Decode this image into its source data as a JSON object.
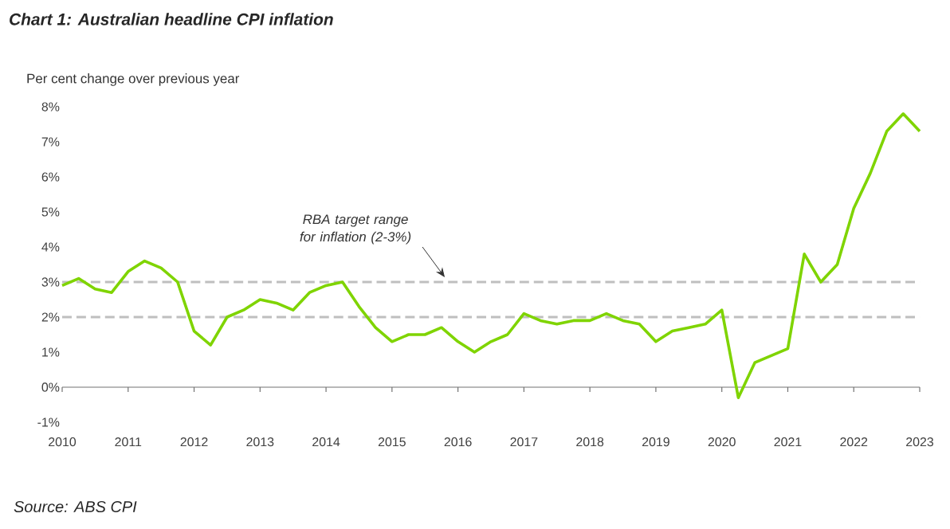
{
  "chart_data": {
    "type": "line",
    "title": "Chart 1: Australian headline CPI inflation",
    "ylabel": "Per cent change over previous year",
    "x": [
      2010,
      2010.25,
      2010.5,
      2010.75,
      2011,
      2011.25,
      2011.5,
      2011.75,
      2012,
      2012.25,
      2012.5,
      2012.75,
      2013,
      2013.25,
      2013.5,
      2013.75,
      2014,
      2014.25,
      2014.5,
      2014.75,
      2015,
      2015.25,
      2015.5,
      2015.75,
      2016,
      2016.25,
      2016.5,
      2016.75,
      2017,
      2017.25,
      2017.5,
      2017.75,
      2018,
      2018.25,
      2018.5,
      2018.75,
      2019,
      2019.25,
      2019.5,
      2019.75,
      2020,
      2020.25,
      2020.5,
      2020.75,
      2021,
      2021.25,
      2021.5,
      2021.75,
      2022,
      2022.25,
      2022.5,
      2022.75,
      2023
    ],
    "series": [
      {
        "color": "#7fd400",
        "values": [
          2.9,
          3.1,
          2.8,
          2.7,
          3.3,
          3.6,
          3.4,
          3.0,
          1.6,
          1.2,
          2.0,
          2.2,
          2.5,
          2.4,
          2.2,
          2.7,
          2.9,
          3.0,
          2.3,
          1.7,
          1.3,
          1.5,
          1.5,
          1.7,
          1.3,
          1.0,
          1.3,
          1.5,
          2.1,
          1.9,
          1.8,
          1.9,
          1.9,
          2.1,
          1.9,
          1.8,
          1.3,
          1.6,
          1.7,
          1.8,
          2.2,
          -0.3,
          0.7,
          0.9,
          1.1,
          3.8,
          3.0,
          3.5,
          5.1,
          6.1,
          7.3,
          7.8,
          7.3
        ]
      }
    ],
    "xlim": [
      2010,
      2023
    ],
    "xticks": [
      2010,
      2011,
      2012,
      2013,
      2014,
      2015,
      2016,
      2017,
      2018,
      2019,
      2020,
      2021,
      2022,
      2023
    ],
    "ylim": [
      -1,
      8
    ],
    "yticks": [
      {
        "value": -1,
        "label": "-1%"
      },
      {
        "value": 0,
        "label": "0%"
      },
      {
        "value": 1,
        "label": "1%"
      },
      {
        "value": 2,
        "label": "2%"
      },
      {
        "value": 3,
        "label": "3%"
      },
      {
        "value": 4,
        "label": "4%"
      },
      {
        "value": 5,
        "label": "5%"
      },
      {
        "value": 6,
        "label": "6%"
      },
      {
        "value": 7,
        "label": "7%"
      },
      {
        "value": 8,
        "label": "8%"
      }
    ],
    "ref_lines": [
      {
        "axis": "y",
        "value": 3,
        "color": "#bfbfbf",
        "line_style": "dashed"
      },
      {
        "axis": "y",
        "value": 2,
        "color": "#bfbfbf",
        "line_style": "dashed"
      }
    ],
    "annotations": [
      {
        "text": "RBA target range for inflation (2-3%)",
        "x": 2015.8,
        "y": 3
      },
      "Source: ABS CPI"
    ],
    "grid": false,
    "marker": "none",
    "line_style": "solid"
  }
}
